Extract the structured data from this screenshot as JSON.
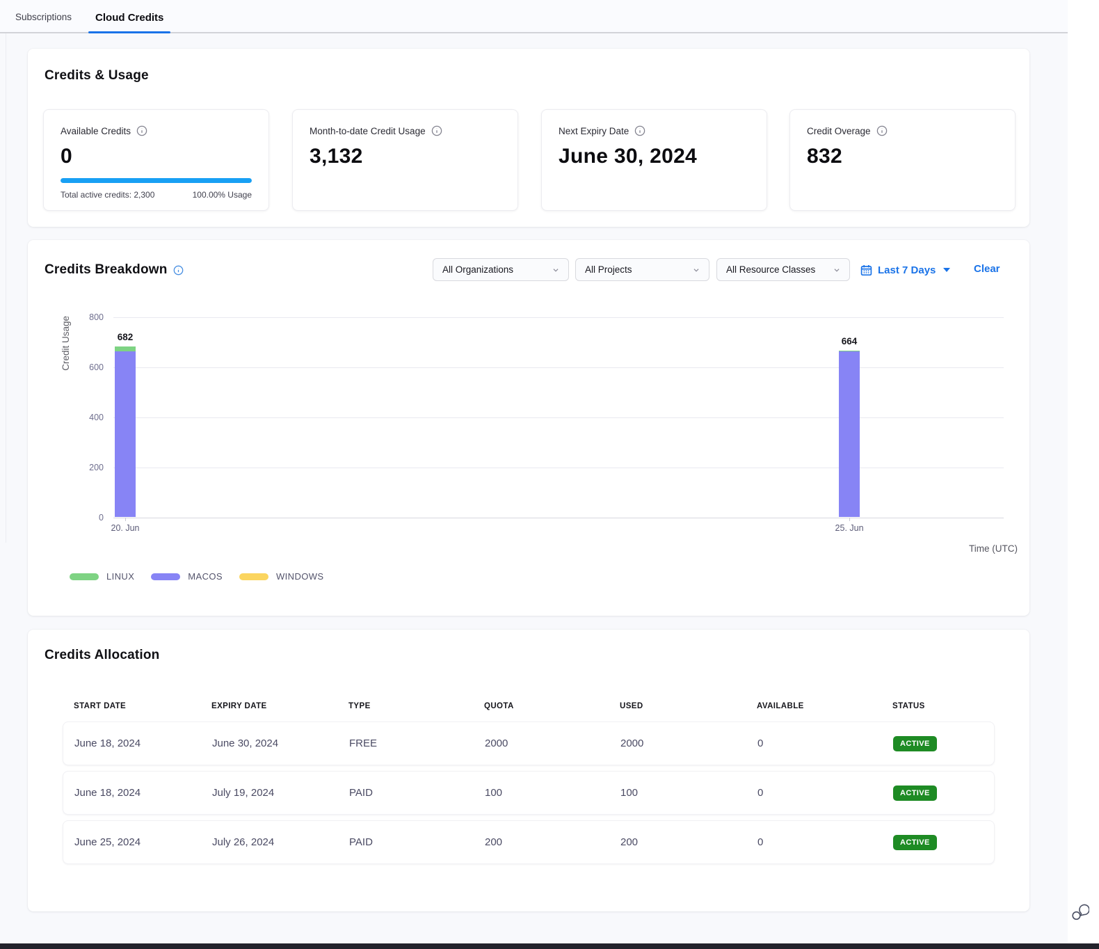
{
  "tabs": {
    "subscriptions": "Subscriptions",
    "cloud_credits": "Cloud Credits"
  },
  "credits_usage": {
    "title": "Credits & Usage",
    "cards": [
      {
        "label": "Available Credits",
        "icon": "info-icon",
        "value": "0",
        "progress_pct": 100,
        "footer_left": "Total active credits: 2,300",
        "footer_right": "100.00% Usage"
      },
      {
        "label": "Month-to-date Credit Usage",
        "icon": "info-icon",
        "value": "3,132"
      },
      {
        "label": "Next Expiry Date",
        "icon": "info-icon",
        "value": "June 30, 2024"
      },
      {
        "label": "Credit Overage",
        "icon": "info-icon",
        "value": "832"
      }
    ]
  },
  "credits_breakdown": {
    "title": "Credits Breakdown",
    "filters": {
      "organizations": "All Organizations",
      "projects": "All Projects",
      "resource_classes": "All Resource Classes",
      "date_range": "Last 7 Days",
      "clear_label": "Clear"
    }
  },
  "chart_data": {
    "type": "bar",
    "stacked": true,
    "x": [
      "20. Jun",
      "25. Jun"
    ],
    "series": [
      {
        "name": "MACOS",
        "color": "#8784f5",
        "values": [
          660,
          660
        ]
      },
      {
        "name": "LINUX",
        "color": "#7ed383",
        "values": [
          22,
          4
        ]
      },
      {
        "name": "WINDOWS",
        "color": "#fbd55f",
        "values": [
          0,
          0
        ]
      }
    ],
    "totals": [
      682,
      664
    ],
    "title": "",
    "ylabel": "Credit Usage",
    "xlabel": "Time (UTC)",
    "ylim": [
      0,
      800
    ],
    "yticks": [
      0,
      200,
      400,
      600,
      800
    ],
    "grid": true,
    "legend": [
      "LINUX",
      "MACOS",
      "WINDOWS"
    ],
    "legend_position": "bottom-left"
  },
  "credits_allocation": {
    "title": "Credits Allocation",
    "columns": [
      "START DATE",
      "EXPIRY DATE",
      "TYPE",
      "QUOTA",
      "USED",
      "AVAILABLE",
      "STATUS"
    ],
    "rows": [
      {
        "start_date": "June 18, 2024",
        "expiry_date": "June 30, 2024",
        "type": "FREE",
        "quota": "2000",
        "used": "2000",
        "available": "0",
        "status": "ACTIVE"
      },
      {
        "start_date": "June 18, 2024",
        "expiry_date": "July 19, 2024",
        "type": "PAID",
        "quota": "100",
        "used": "100",
        "available": "0",
        "status": "ACTIVE"
      },
      {
        "start_date": "June 25, 2024",
        "expiry_date": "July 26, 2024",
        "type": "PAID",
        "quota": "200",
        "used": "200",
        "available": "0",
        "status": "ACTIVE"
      }
    ]
  },
  "colors": {
    "accent_blue": "#1a73e8",
    "progress_blue": "#18a0f4",
    "badge_green": "#1e8b24",
    "bar_linux": "#7ed383",
    "bar_macos": "#8784f5",
    "bar_windows": "#fbd55f"
  },
  "icons": {
    "info": "circle-i",
    "chevron_down": "v",
    "calendar": "calendar-grid",
    "caret_down": "filled-triangle-down",
    "chat": "speech-bubbles"
  }
}
